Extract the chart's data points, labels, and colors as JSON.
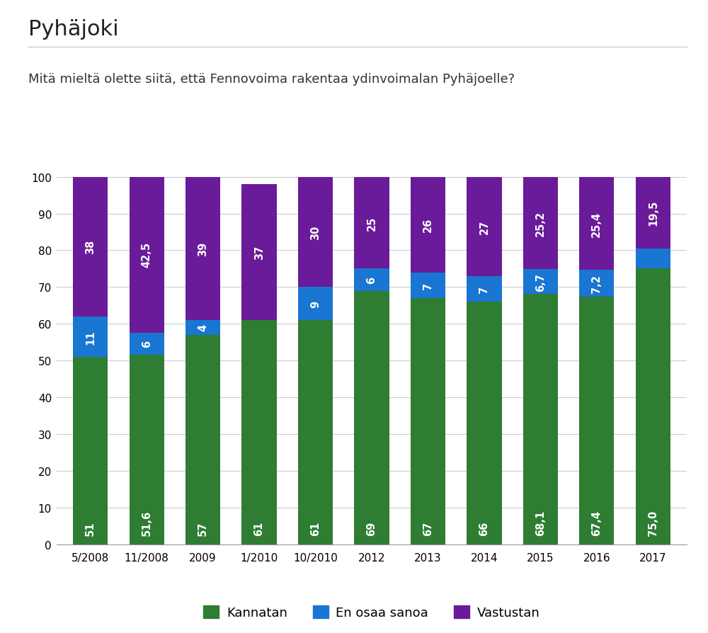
{
  "title": "Pyhäjoki",
  "question": "Mitä mieltä olette siitä, että Fennovoima rakentaa ydinvoimalan Pyhäjoelle?",
  "categories": [
    "5/2008",
    "11/2008",
    "2009",
    "1/2010",
    "10/2010",
    "2012",
    "2013",
    "2014",
    "2015",
    "2016",
    "2017"
  ],
  "kannatan": [
    51,
    51.6,
    57,
    61,
    61,
    69,
    67,
    66,
    68.1,
    67.4,
    75.0
  ],
  "en_osaa_sanoa": [
    11,
    6,
    4,
    0,
    9,
    6,
    7,
    7,
    6.7,
    7.2,
    5.5
  ],
  "vastustan": [
    38,
    42.5,
    39,
    37,
    30,
    25,
    26,
    27,
    25.2,
    25.4,
    19.5
  ],
  "kannatan_labels": [
    "51",
    "51,6",
    "57",
    "61",
    "61",
    "69",
    "67",
    "66",
    "68,1",
    "67,4",
    "75,0"
  ],
  "en_osaa_sanoa_labels": [
    "11",
    "6",
    "4",
    "",
    "9",
    "6",
    "7",
    "7",
    "6,7",
    "7,2",
    ""
  ],
  "vastustan_labels": [
    "38",
    "42,5",
    "39",
    "37",
    "30",
    "25",
    "26",
    "27",
    "25,2",
    "25,4",
    "19,5"
  ],
  "color_kannatan": "#2e7d32",
  "color_en_osaa_sanoa": "#1976d2",
  "color_vastustan": "#6a1b9a",
  "legend_labels": [
    "Kannatan",
    "En osaa sanoa",
    "Vastustan"
  ],
  "ylim": [
    0,
    100
  ],
  "yticks": [
    0,
    10,
    20,
    30,
    40,
    50,
    60,
    70,
    80,
    90,
    100
  ],
  "background_color": "#ffffff",
  "title_fontsize": 22,
  "question_fontsize": 13,
  "bar_label_fontsize": 10.5,
  "tick_fontsize": 11,
  "legend_fontsize": 13
}
